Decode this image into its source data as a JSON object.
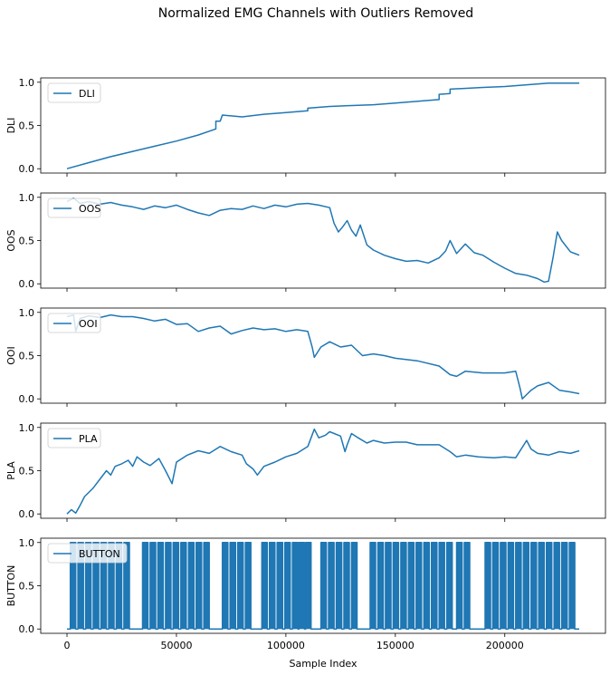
{
  "figure": {
    "title": "Normalized EMG Channels with Outliers Removed"
  },
  "chart_data": {
    "type": "line",
    "title": "Normalized EMG Channels with Outliers Removed",
    "xlabel": "Sample Index",
    "xlim": [
      -12000,
      246000
    ],
    "x_ticks": [
      0,
      50000,
      100000,
      150000,
      200000
    ],
    "x_tick_labels": [
      "0",
      "50000",
      "100000",
      "150000",
      "200000"
    ],
    "shared_x": true,
    "line_color": "#1f77b4",
    "subplots": [
      {
        "ylabel": "DLI",
        "legend": "DLI",
        "legend_loc": "upper left",
        "ylim": [
          -0.05,
          1.05
        ],
        "y_ticks": [
          0,
          0.5,
          1
        ],
        "y_tick_labels": [
          "0.0",
          "0.5",
          "1.0"
        ],
        "series": {
          "x": [
            0,
            10000,
            20000,
            30000,
            40000,
            50000,
            60000,
            68000,
            68000,
            70000,
            71000,
            80000,
            90000,
            100000,
            110000,
            110000,
            120000,
            130000,
            140000,
            150000,
            170000,
            170000,
            175000,
            175000,
            190000,
            200000,
            210000,
            220000,
            234000
          ],
          "y": [
            0,
            0.07,
            0.14,
            0.2,
            0.26,
            0.32,
            0.39,
            0.46,
            0.55,
            0.55,
            0.62,
            0.6,
            0.63,
            0.65,
            0.67,
            0.7,
            0.72,
            0.73,
            0.74,
            0.76,
            0.8,
            0.86,
            0.87,
            0.92,
            0.94,
            0.95,
            0.97,
            0.99,
            0.99
          ]
        }
      },
      {
        "ylabel": "OOS",
        "legend": "OOS",
        "legend_loc": "upper left",
        "ylim": [
          -0.05,
          1.05
        ],
        "y_ticks": [
          0,
          0.5,
          1
        ],
        "y_tick_labels": [
          "0.0",
          "0.5",
          "1.0"
        ],
        "series": {
          "x": [
            0,
            3000,
            6000,
            10000,
            15000,
            20000,
            25000,
            30000,
            35000,
            40000,
            45000,
            50000,
            55000,
            60000,
            65000,
            70000,
            75000,
            80000,
            85000,
            90000,
            95000,
            100000,
            105000,
            110000,
            115000,
            120000,
            122000,
            124000,
            126000,
            128000,
            130000,
            132000,
            134000,
            137000,
            140000,
            145000,
            150000,
            155000,
            160000,
            165000,
            170000,
            173000,
            175000,
            178000,
            182000,
            186000,
            190000,
            195000,
            200000,
            205000,
            210000,
            215000,
            218000,
            220000,
            222000,
            224000,
            226000,
            230000,
            234000
          ],
          "y": [
            0.95,
            0.99,
            0.93,
            0.95,
            0.92,
            0.94,
            0.91,
            0.89,
            0.86,
            0.9,
            0.88,
            0.91,
            0.86,
            0.82,
            0.79,
            0.85,
            0.87,
            0.86,
            0.9,
            0.87,
            0.91,
            0.89,
            0.92,
            0.93,
            0.91,
            0.88,
            0.7,
            0.6,
            0.66,
            0.73,
            0.62,
            0.55,
            0.68,
            0.45,
            0.39,
            0.33,
            0.29,
            0.26,
            0.27,
            0.24,
            0.3,
            0.38,
            0.5,
            0.35,
            0.46,
            0.36,
            0.33,
            0.25,
            0.18,
            0.12,
            0.1,
            0.06,
            0.02,
            0.03,
            0.3,
            0.6,
            0.5,
            0.37,
            0.33
          ]
        }
      },
      {
        "ylabel": "OOI",
        "legend": "OOI",
        "legend_loc": "upper left",
        "ylim": [
          -0.05,
          1.05
        ],
        "y_ticks": [
          0,
          0.5,
          1
        ],
        "y_tick_labels": [
          "0.0",
          "0.5",
          "1.0"
        ],
        "series": {
          "x": [
            0,
            3000,
            4000,
            6000,
            10000,
            15000,
            20000,
            25000,
            30000,
            35000,
            40000,
            45000,
            50000,
            55000,
            60000,
            65000,
            70000,
            75000,
            80000,
            85000,
            90000,
            95000,
            100000,
            105000,
            110000,
            112000,
            113000,
            116000,
            120000,
            125000,
            130000,
            135000,
            140000,
            145000,
            150000,
            160000,
            170000,
            175000,
            178000,
            182000,
            190000,
            200000,
            205000,
            207000,
            208000,
            210000,
            212000,
            215000,
            220000,
            225000,
            230000,
            234000
          ],
          "y": [
            0.95,
            0.97,
            0.78,
            0.93,
            0.96,
            0.94,
            0.97,
            0.95,
            0.95,
            0.93,
            0.9,
            0.92,
            0.86,
            0.87,
            0.78,
            0.82,
            0.84,
            0.75,
            0.79,
            0.82,
            0.8,
            0.81,
            0.78,
            0.8,
            0.78,
            0.6,
            0.48,
            0.6,
            0.66,
            0.6,
            0.62,
            0.5,
            0.52,
            0.5,
            0.47,
            0.44,
            0.38,
            0.28,
            0.26,
            0.32,
            0.3,
            0.3,
            0.32,
            0.12,
            0.0,
            0.05,
            0.1,
            0.15,
            0.19,
            0.1,
            0.08,
            0.06
          ]
        }
      },
      {
        "ylabel": "PLA",
        "legend": "PLA",
        "legend_loc": "upper left",
        "ylim": [
          -0.05,
          1.05
        ],
        "y_ticks": [
          0,
          0.5,
          1
        ],
        "y_tick_labels": [
          "0.0",
          "0.5",
          "1.0"
        ],
        "series": {
          "x": [
            0,
            2000,
            4000,
            6000,
            8000,
            10000,
            12000,
            15000,
            18000,
            20000,
            22000,
            25000,
            28000,
            30000,
            32000,
            35000,
            38000,
            42000,
            45000,
            48000,
            50000,
            55000,
            60000,
            65000,
            70000,
            75000,
            80000,
            82000,
            85000,
            87000,
            90000,
            95000,
            100000,
            105000,
            110000,
            113000,
            115000,
            118000,
            120000,
            125000,
            127000,
            128000,
            130000,
            133000,
            137000,
            140000,
            145000,
            150000,
            155000,
            160000,
            165000,
            170000,
            175000,
            178000,
            182000,
            188000,
            195000,
            200000,
            205000,
            210000,
            212000,
            215000,
            220000,
            225000,
            230000,
            234000
          ],
          "y": [
            0.0,
            0.05,
            0.01,
            0.1,
            0.2,
            0.25,
            0.3,
            0.4,
            0.5,
            0.45,
            0.55,
            0.58,
            0.62,
            0.55,
            0.66,
            0.6,
            0.56,
            0.64,
            0.5,
            0.35,
            0.6,
            0.68,
            0.73,
            0.7,
            0.78,
            0.72,
            0.68,
            0.58,
            0.52,
            0.45,
            0.55,
            0.6,
            0.66,
            0.7,
            0.78,
            0.98,
            0.88,
            0.91,
            0.95,
            0.9,
            0.72,
            0.8,
            0.93,
            0.88,
            0.82,
            0.85,
            0.82,
            0.83,
            0.83,
            0.8,
            0.8,
            0.8,
            0.72,
            0.66,
            0.68,
            0.66,
            0.65,
            0.66,
            0.65,
            0.85,
            0.75,
            0.7,
            0.68,
            0.72,
            0.7,
            0.73
          ]
        }
      },
      {
        "ylabel": "BUTTON",
        "legend": "BUTTON",
        "legend_loc": "upper left",
        "ylim": [
          -0.05,
          1.05
        ],
        "y_ticks": [
          0,
          0.5,
          1
        ],
        "y_tick_labels": [
          "0.0",
          "0.5",
          "1.0"
        ],
        "series": {
          "type": "pulse",
          "baseline": 0,
          "high": 1,
          "x_range": [
            0,
            234000
          ],
          "pulses": [
            [
              1500,
              4000
            ],
            [
              5000,
              7500
            ],
            [
              8500,
              11000
            ],
            [
              12000,
              14500
            ],
            [
              15500,
              18000
            ],
            [
              19000,
              21500
            ],
            [
              22500,
              25000
            ],
            [
              26000,
              28500
            ],
            [
              34500,
              37000
            ],
            [
              38000,
              40500
            ],
            [
              41500,
              44000
            ],
            [
              45000,
              47500
            ],
            [
              48500,
              51000
            ],
            [
              52000,
              54500
            ],
            [
              55500,
              58000
            ],
            [
              59000,
              61500
            ],
            [
              62500,
              65000
            ],
            [
              71000,
              73500
            ],
            [
              74500,
              77000
            ],
            [
              78000,
              80500
            ],
            [
              81500,
              84000
            ],
            [
              89000,
              91500
            ],
            [
              92500,
              95000
            ],
            [
              96000,
              98500
            ],
            [
              99500,
              102000
            ],
            [
              103000,
              105500
            ],
            [
              106000,
              108500
            ],
            [
              109000,
              111500
            ],
            [
              116000,
              118500
            ],
            [
              119500,
              122000
            ],
            [
              123000,
              125500
            ],
            [
              126500,
              129000
            ],
            [
              130000,
              132500
            ],
            [
              138500,
              141000
            ],
            [
              142000,
              144500
            ],
            [
              145500,
              148000
            ],
            [
              149000,
              151500
            ],
            [
              152500,
              155000
            ],
            [
              156000,
              158500
            ],
            [
              159500,
              162000
            ],
            [
              163000,
              165500
            ],
            [
              166500,
              169000
            ],
            [
              170000,
              172500
            ],
            [
              173500,
              176000
            ],
            [
              178000,
              180500
            ],
            [
              181500,
              184000
            ],
            [
              191000,
              193500
            ],
            [
              194500,
              197000
            ],
            [
              198000,
              200500
            ],
            [
              201500,
              204000
            ],
            [
              205000,
              207500
            ],
            [
              208500,
              211000
            ],
            [
              212000,
              214500
            ],
            [
              215500,
              218000
            ],
            [
              219000,
              221500
            ],
            [
              222500,
              225000
            ],
            [
              226000,
              228500
            ],
            [
              229500,
              232000
            ]
          ]
        }
      }
    ]
  }
}
